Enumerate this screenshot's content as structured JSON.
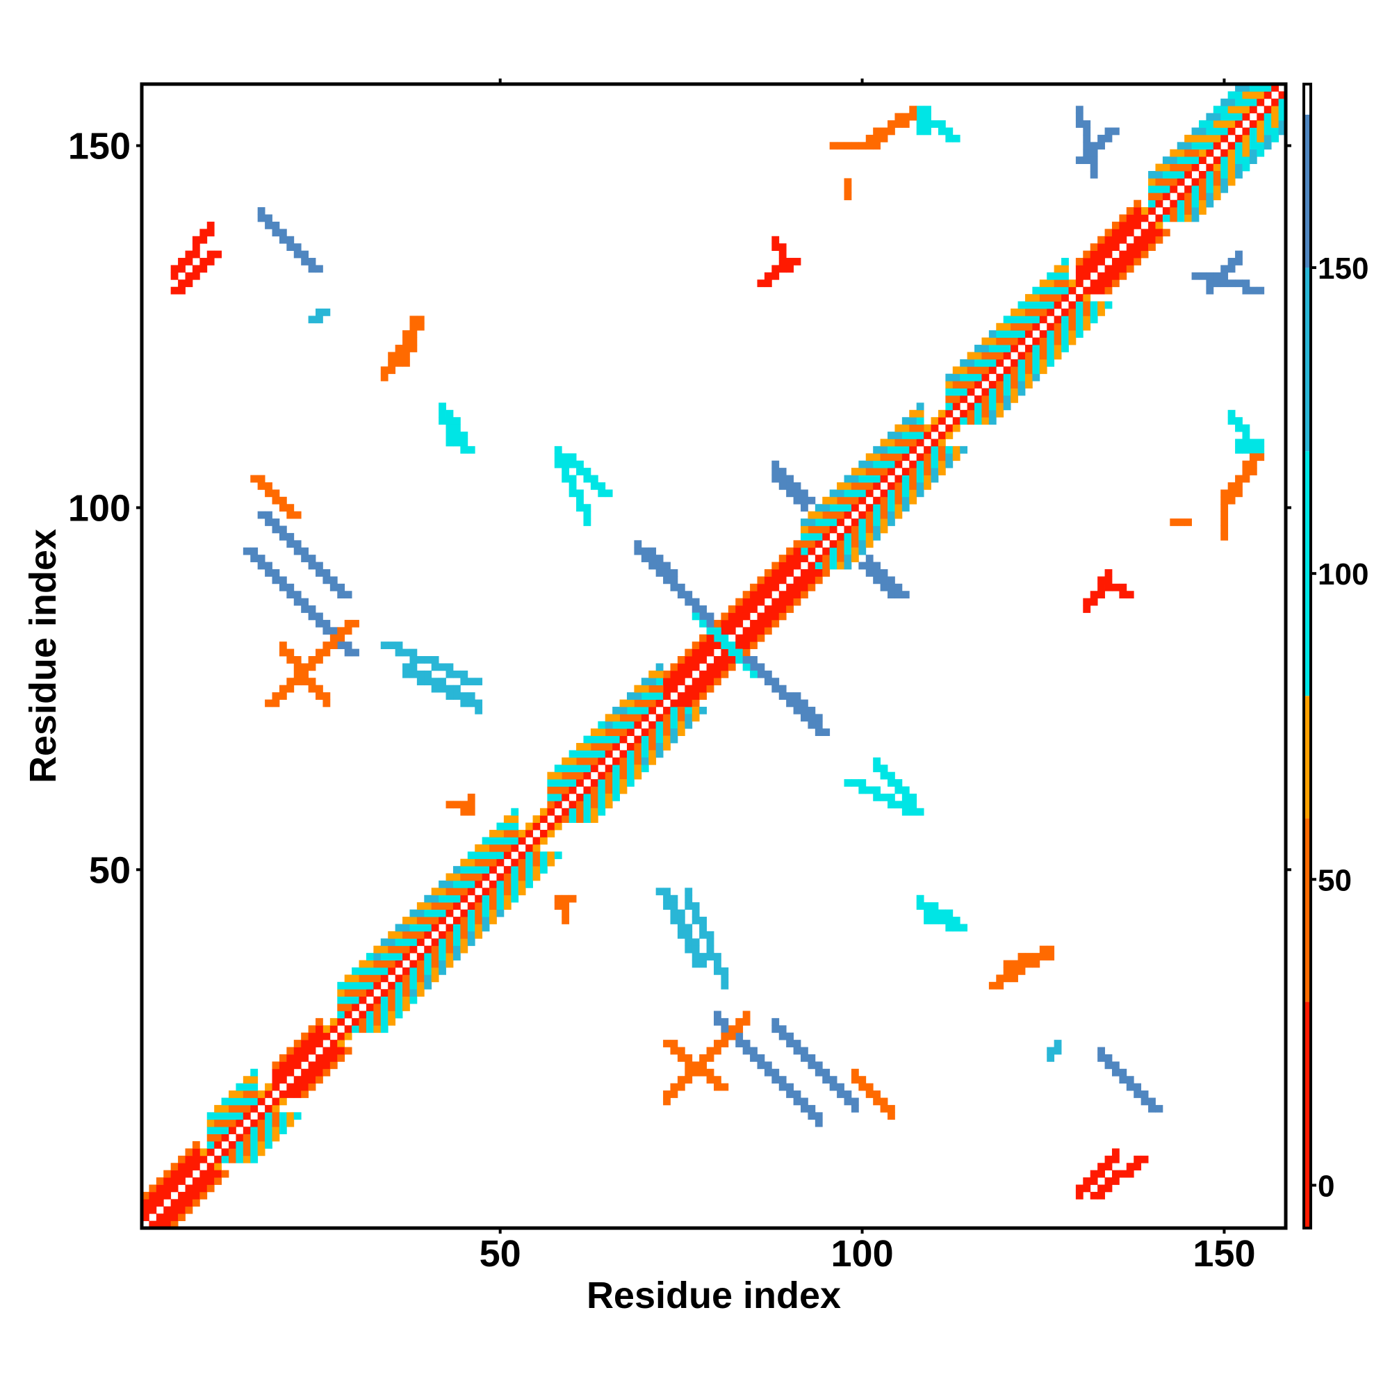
{
  "chart_data": {
    "type": "heatmap",
    "subtype": "contact-map",
    "title": "",
    "xlabel": "Residue index",
    "ylabel": "Residue index",
    "xlim": [
      1,
      158
    ],
    "ylim": [
      1,
      158
    ],
    "x_ticks": [
      50,
      100,
      150
    ],
    "y_ticks": [
      50,
      100,
      150
    ],
    "grid": false,
    "colorbar": {
      "position": "right",
      "ticks": [
        0,
        50,
        100,
        150
      ],
      "range": [
        -7,
        180
      ],
      "bins": [
        {
          "from": -7,
          "to": 30,
          "color": "#ff1a00"
        },
        {
          "from": 30,
          "to": 60,
          "color": "#ff6a00"
        },
        {
          "from": 60,
          "to": 80,
          "color": "#ffa000"
        },
        {
          "from": 80,
          "to": 120,
          "color": "#00e5e5"
        },
        {
          "from": 120,
          "to": 150,
          "color": "#29b6d6"
        },
        {
          "from": 150,
          "to": 175,
          "color": "#4f86c0"
        },
        {
          "from": 175,
          "to": 180,
          "color": "#ffffff"
        }
      ]
    },
    "features": [
      {
        "type": "diagonal",
        "from": 1,
        "to": 158,
        "value": 40
      },
      {
        "type": "helix",
        "from": 1,
        "to": 8,
        "value": 10
      },
      {
        "type": "helix",
        "from": 19,
        "to": 25,
        "value": 10
      },
      {
        "type": "helix",
        "from": 57,
        "to": 80,
        "value": 10
      },
      {
        "type": "helix",
        "from": 81,
        "to": 97,
        "value": 10
      },
      {
        "type": "helix",
        "from": 130,
        "to": 138,
        "value": 10
      },
      {
        "type": "block",
        "from": 10,
        "to": 16,
        "value": 90
      },
      {
        "type": "block",
        "from": 28,
        "to": 33,
        "value": 90
      },
      {
        "type": "block",
        "from": 33,
        "to": 45,
        "value": 100
      },
      {
        "type": "block",
        "from": 45,
        "to": 52,
        "value": 85
      },
      {
        "type": "block",
        "from": 57,
        "to": 65,
        "value": 90
      },
      {
        "type": "block",
        "from": 65,
        "to": 72,
        "value": 100
      },
      {
        "type": "block",
        "from": 92,
        "to": 97,
        "value": 100
      },
      {
        "type": "block",
        "from": 97,
        "to": 108,
        "value": 100
      },
      {
        "type": "block",
        "from": 112,
        "to": 119,
        "value": 100
      },
      {
        "type": "block",
        "from": 119,
        "to": 128,
        "value": 95
      },
      {
        "type": "block",
        "from": 140,
        "to": 147,
        "value": 100
      },
      {
        "type": "block",
        "from": 147,
        "to": 158,
        "value": 110
      },
      {
        "type": "antiparallel",
        "i_from": 70,
        "i_to": 80,
        "j_from": 94,
        "j_to": 82,
        "value": 160
      },
      {
        "type": "antiparallel",
        "i_from": 80,
        "i_to": 85,
        "j_from": 82,
        "j_to": 77,
        "value": 90
      },
      {
        "type": "antiparallel",
        "i_from": 84,
        "i_to": 94,
        "j_from": 79,
        "j_to": 69,
        "value": 160
      },
      {
        "type": "antiparallel",
        "i_from": 15,
        "i_to": 29,
        "j_from": 94,
        "j_to": 80,
        "value": 160
      },
      {
        "type": "antiparallel",
        "i_from": 17,
        "i_to": 28,
        "j_from": 99,
        "j_to": 88,
        "value": 160
      },
      {
        "type": "antiparallel",
        "i_from": 18,
        "i_to": 29,
        "j_from": 73,
        "j_to": 84,
        "value": 40
      },
      {
        "type": "antiparallel",
        "i_from": 16,
        "i_to": 21,
        "j_from": 104,
        "j_to": 99,
        "value": 40
      },
      {
        "type": "antiparallel",
        "i_from": 17,
        "i_to": 24,
        "j_from": 140,
        "j_to": 133,
        "value": 160
      },
      {
        "type": "antiparallel",
        "i_from": 5,
        "i_to": 10,
        "j_from": 130,
        "j_to": 135,
        "value": 10
      },
      {
        "type": "antiparallel",
        "i_from": 24,
        "i_to": 25,
        "j_from": 126,
        "j_to": 127,
        "value": 120
      },
      {
        "type": "antiparallel",
        "i_from": 73,
        "i_to": 80,
        "j_from": 26,
        "j_to": 20,
        "value": 40
      },
      {
        "type": "antiparallel",
        "i_from": 133,
        "i_to": 140,
        "j_from": 24,
        "j_to": 17,
        "value": 160
      },
      {
        "type": "antiparallel",
        "i_from": 132,
        "i_to": 138,
        "j_from": 5,
        "j_to": 10,
        "value": 10
      },
      {
        "type": "antiparallel",
        "i_from": 72,
        "i_to": 77,
        "j_from": 47,
        "j_to": 37,
        "value": 130
      },
      {
        "type": "antiparallel",
        "i_from": 34,
        "i_to": 46,
        "j_from": 81,
        "j_to": 76,
        "value": 120
      },
      {
        "type": "antiparallel",
        "i_from": 88,
        "i_to": 92,
        "j_from": 104,
        "j_to": 101,
        "value": 150
      },
      {
        "type": "antiparallel",
        "i_from": 100,
        "i_to": 105,
        "j_from": 92,
        "j_to": 88,
        "value": 160
      },
      {
        "type": "antiparallel",
        "i_from": 110,
        "i_to": 112,
        "j_from": 153,
        "j_to": 151,
        "value": 100
      },
      {
        "type": "antiparallel",
        "i_from": 133,
        "i_to": 136,
        "j_from": 90,
        "j_to": 88,
        "value": 10
      },
      {
        "type": "antiparallel",
        "i_from": 146,
        "i_to": 154,
        "j_from": 132,
        "j_to": 130,
        "value": 160
      },
      {
        "type": "antiparallel",
        "i_from": 130,
        "i_to": 134,
        "j_from": 148,
        "j_to": 152,
        "value": 155
      },
      {
        "type": "antiparallel",
        "i_from": 86,
        "i_to": 90,
        "j_from": 131,
        "j_to": 134,
        "value": 10
      },
      {
        "type": "antiparallel",
        "i_from": 36,
        "i_to": 38,
        "j_from": 120,
        "j_to": 126,
        "value": 40
      },
      {
        "type": "antiparallel",
        "i_from": 118,
        "i_to": 124,
        "j_from": 34,
        "j_to": 38,
        "value": 40
      },
      {
        "type": "antiparallel",
        "i_from": 42,
        "i_to": 45,
        "j_from": 113,
        "j_to": 108,
        "value": 100
      },
      {
        "type": "antiparallel",
        "i_from": 59,
        "i_to": 64,
        "j_from": 107,
        "j_to": 102,
        "value": 100
      },
      {
        "type": "antiparallel",
        "i_from": 98,
        "i_to": 107,
        "j_from": 62,
        "j_to": 58,
        "value": 100
      },
      {
        "type": "antiparallel",
        "i_from": 109,
        "i_to": 113,
        "j_from": 43,
        "j_to": 42,
        "value": 115
      },
      {
        "type": "antiparallel",
        "i_from": 58,
        "i_to": 59,
        "j_from": 46,
        "j_to": 46,
        "value": 30
      },
      {
        "type": "antiparallel",
        "i_from": 43,
        "i_to": 45,
        "j_from": 59,
        "j_to": 58,
        "value": 40
      },
      {
        "type": "antiparallel",
        "i_from": 96,
        "i_to": 101,
        "j_from": 150,
        "j_to": 150,
        "value": 40
      },
      {
        "type": "antiparallel",
        "i_from": 108,
        "i_to": 108,
        "j_from": 155,
        "j_to": 152,
        "value": 90
      },
      {
        "type": "antiparallel",
        "i_from": 143,
        "i_to": 144,
        "j_from": 98,
        "j_to": 98,
        "value": 50
      },
      {
        "type": "antiparallel",
        "i_from": 150,
        "i_to": 154,
        "j_from": 101,
        "j_to": 107,
        "value": 50
      }
    ]
  }
}
